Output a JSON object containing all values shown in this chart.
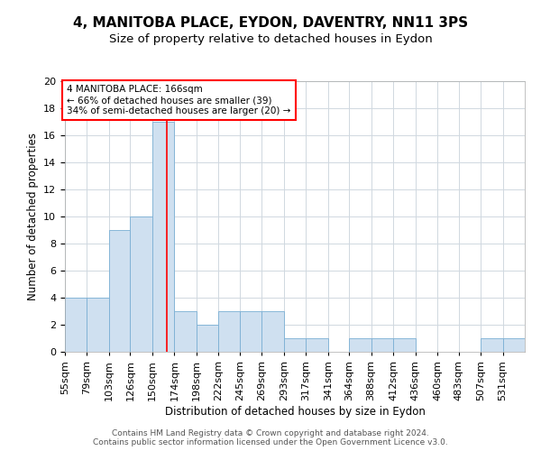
{
  "title": "4, MANITOBA PLACE, EYDON, DAVENTRY, NN11 3PS",
  "subtitle": "Size of property relative to detached houses in Eydon",
  "xlabel": "Distribution of detached houses by size in Eydon",
  "ylabel": "Number of detached properties",
  "bins": [
    "55sqm",
    "79sqm",
    "103sqm",
    "126sqm",
    "150sqm",
    "174sqm",
    "198sqm",
    "222sqm",
    "245sqm",
    "269sqm",
    "293sqm",
    "317sqm",
    "341sqm",
    "364sqm",
    "388sqm",
    "412sqm",
    "436sqm",
    "460sqm",
    "483sqm",
    "507sqm",
    "531sqm"
  ],
  "counts": [
    4,
    4,
    9,
    10,
    17,
    3,
    2,
    3,
    3,
    3,
    1,
    1,
    0,
    1,
    1,
    1,
    0,
    0,
    0,
    1,
    1
  ],
  "bin_edges": [
    55,
    79,
    103,
    126,
    150,
    174,
    198,
    222,
    245,
    269,
    293,
    317,
    341,
    364,
    388,
    412,
    436,
    460,
    483,
    507,
    531,
    555
  ],
  "property_size": 166,
  "bar_color": "#cfe0f0",
  "bar_edge_color": "#7aafd4",
  "red_line_x": 166,
  "annotation_text": "4 MANITOBA PLACE: 166sqm\n← 66% of detached houses are smaller (39)\n34% of semi-detached houses are larger (20) →",
  "annotation_box_color": "white",
  "annotation_box_edge": "red",
  "ylim": [
    0,
    20
  ],
  "yticks": [
    0,
    2,
    4,
    6,
    8,
    10,
    12,
    14,
    16,
    18,
    20
  ],
  "footer_text": "Contains HM Land Registry data © Crown copyright and database right 2024.\nContains public sector information licensed under the Open Government Licence v3.0.",
  "title_fontsize": 11,
  "subtitle_fontsize": 9.5,
  "xlabel_fontsize": 8.5,
  "ylabel_fontsize": 8.5,
  "tick_fontsize": 8,
  "footer_fontsize": 6.5,
  "annot_fontsize": 7.5
}
